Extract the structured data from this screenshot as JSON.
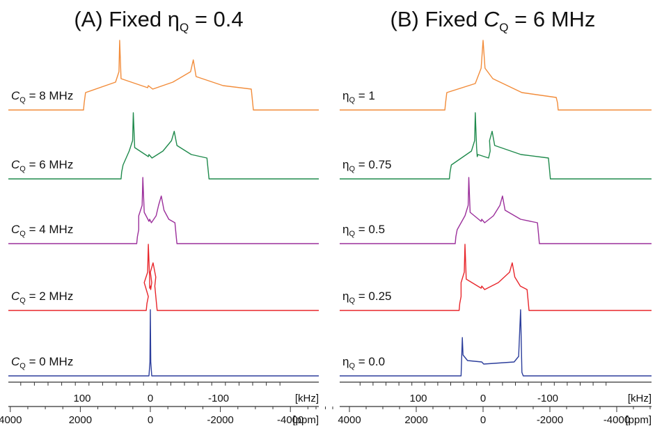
{
  "chart_data": [
    {
      "type": "line",
      "panel": "A",
      "title": "(A) Fixed η",
      "title_sub": "Q",
      "title_tail": " = 0.4",
      "eta_q": 0.4,
      "axis_khz": {
        "ticks": [
          100,
          0,
          -100
        ],
        "labels": [
          "100",
          "0",
          "-100"
        ],
        "unit": "[kHz]",
        "range": [
          190,
          -190
        ]
      },
      "axis_ppm": {
        "ticks": [
          4000,
          2000,
          0,
          -2000,
          -4000
        ],
        "labels": [
          "4000",
          "2000",
          "0",
          "-2000",
          "-4000"
        ],
        "unit": "[ppm]"
      },
      "series": [
        {
          "label_main": "C",
          "label_sub": "Q",
          "label_tail": " = 8 MHz",
          "cq_mhz": 8,
          "color": "#f28c3a",
          "edges_khz": [
            97,
            -150
          ],
          "horn_khz": [
            45,
            -63
          ],
          "step_khz": 3
        },
        {
          "label_main": "C",
          "label_sub": "Q",
          "label_tail": " = 6 MHz",
          "cq_mhz": 6,
          "color": "#1f8a4c",
          "edges_khz": [
            42,
            -85
          ],
          "horn_khz": [
            25,
            -35
          ],
          "step_khz": 2
        },
        {
          "label_main": "C",
          "label_sub": "Q",
          "label_tail": " = 4 MHz",
          "cq_mhz": 4,
          "color": "#9b2f9b",
          "edges_khz": [
            19,
            -38
          ],
          "horn_khz": [
            11,
            -16
          ],
          "step_khz": 1
        },
        {
          "label_main": "C",
          "label_sub": "Q",
          "label_tail": " = 2 MHz",
          "cq_mhz": 2,
          "color": "#e8262b",
          "edges_khz": [
            5,
            -9
          ],
          "horn_khz": [
            3,
            -4
          ],
          "step_khz": 0
        },
        {
          "label_main": "C",
          "label_sub": "Q",
          "label_tail": " = 0 MHz",
          "cq_mhz": 0,
          "color": "#2b3d9b",
          "edges_khz": [
            0,
            0
          ],
          "horn_khz": [
            0,
            0
          ],
          "step_khz": 0
        }
      ]
    },
    {
      "type": "line",
      "panel": "B",
      "title": "(B) Fixed ",
      "title_italic": "C",
      "title_sub": "Q",
      "title_tail": " = 6 MHz",
      "cq_mhz": 6,
      "axis_khz": {
        "ticks": [
          100,
          0,
          -100
        ],
        "labels": [
          "100",
          "0",
          "-100"
        ],
        "unit": "[kHz]",
        "range": [
          190,
          -190
        ]
      },
      "axis_ppm": {
        "ticks": [
          4000,
          2000,
          0,
          -2000,
          -4000
        ],
        "labels": [
          "4000",
          "2000",
          "0",
          "-2000",
          "-4000"
        ],
        "unit": "[ppm]"
      },
      "series": [
        {
          "label_main": "η",
          "label_sub": "Q",
          "label_tail": " = 1",
          "eta_q": 1,
          "color": "#f28c3a",
          "edges_khz": [
            58,
            -115
          ],
          "horn_khz": [
            0,
            0
          ],
          "step_khz": 6
        },
        {
          "label_main": "η",
          "label_sub": "Q",
          "label_tail": " = 0.75",
          "eta_q": 0.75,
          "color": "#1f8a4c",
          "edges_khz": [
            51,
            -103
          ],
          "horn_khz": [
            12,
            -14
          ],
          "step_khz": 8
        },
        {
          "label_main": "η",
          "label_sub": "Q",
          "label_tail": " = 0.5",
          "eta_q": 0.5,
          "color": "#9b2f9b",
          "edges_khz": [
            42,
            -86
          ],
          "horn_khz": [
            22,
            -30
          ],
          "step_khz": 2
        },
        {
          "label_main": "η",
          "label_sub": "Q",
          "label_tail": " = 0.25",
          "eta_q": 0.25,
          "color": "#e8262b",
          "edges_khz": [
            36,
            -70
          ],
          "horn_khz": [
            28,
            -45
          ],
          "step_khz": 2
        },
        {
          "label_main": "η",
          "label_sub": "Q",
          "label_tail": " = 0.0",
          "eta_q": 0.0,
          "color": "#2b3d9b",
          "edges_khz": [
            0,
            0
          ],
          "horn_khz": [
            32,
            -58
          ],
          "step_khz": 0
        }
      ]
    }
  ]
}
